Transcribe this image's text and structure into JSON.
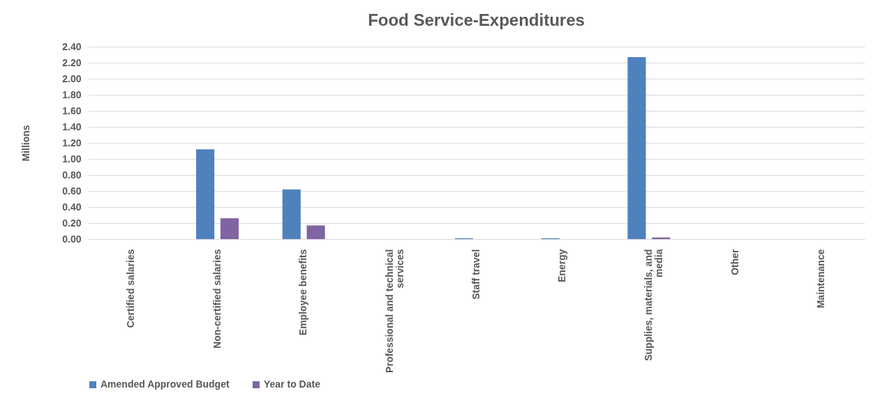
{
  "chart_data": {
    "type": "bar",
    "title": "Food Service-Expenditures",
    "ylabel": "Millions",
    "categories": [
      "Certified salaries",
      "Non-certified salaries",
      "Employee benefits",
      "Professional and technical services",
      "Staff travel",
      "Energy",
      "Supplies, materials, and media",
      "Other",
      "Maintenance"
    ],
    "series": [
      {
        "name": "Amended Approved Budget",
        "color": "#4f81bd",
        "values": [
          0,
          1.12,
          0.62,
          0,
          0.01,
          0.01,
          2.27,
          0,
          0
        ]
      },
      {
        "name": "Year to Date",
        "color": "#8064a2",
        "values": [
          0,
          0.26,
          0.17,
          0,
          0,
          0,
          0.02,
          0,
          0
        ]
      }
    ],
    "ylim": [
      0,
      2.4
    ],
    "yticks": [
      {
        "value": 0,
        "label": "0.00"
      },
      {
        "value": 0.2,
        "label": "0.20"
      },
      {
        "value": 0.4,
        "label": "0.40"
      },
      {
        "value": 0.6,
        "label": "0.60"
      },
      {
        "value": 0.8,
        "label": "0.80"
      },
      {
        "value": 1,
        "label": "1.00"
      },
      {
        "value": 1.2,
        "label": "1.20"
      },
      {
        "value": 1.4,
        "label": "1.40"
      },
      {
        "value": 1.6,
        "label": "1.60"
      },
      {
        "value": 1.8,
        "label": "1.80"
      },
      {
        "value": 2,
        "label": "2.00"
      },
      {
        "value": 2.2,
        "label": "2.20"
      },
      {
        "value": 2.4,
        "label": "2.40"
      }
    ],
    "grid": "y",
    "legend": "bottom"
  }
}
